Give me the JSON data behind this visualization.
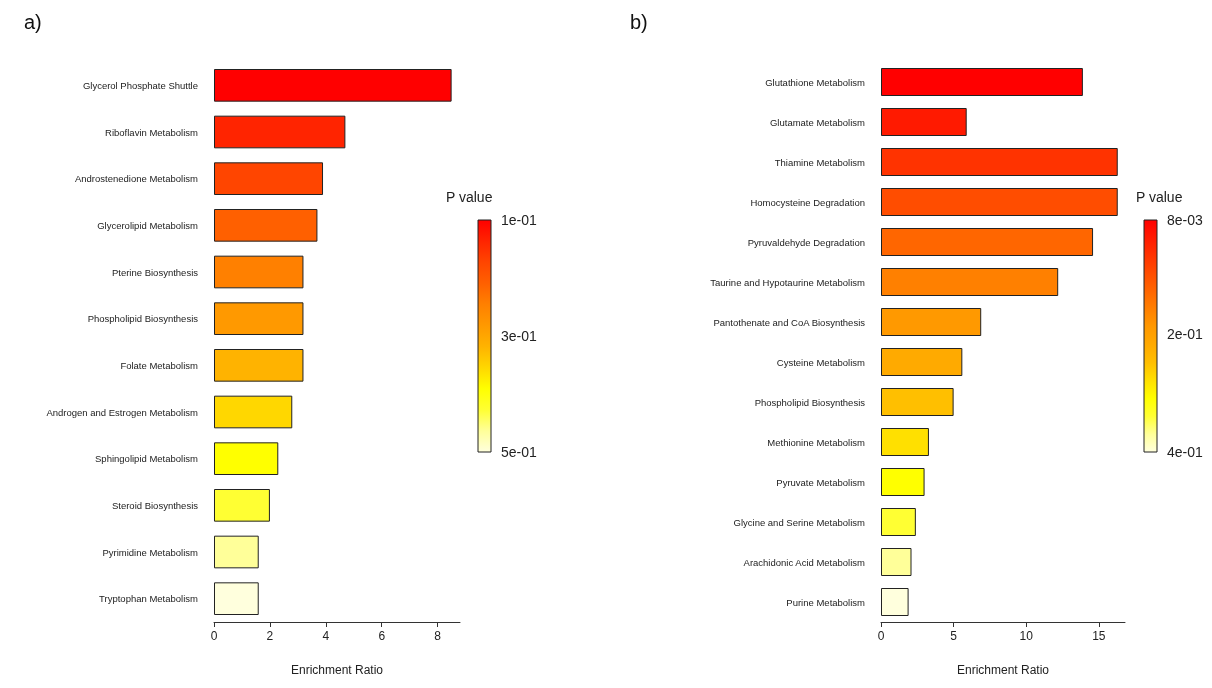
{
  "chart_data": [
    {
      "type": "bar",
      "orientation": "horizontal",
      "title": "a)",
      "xlabel": "Enrichment Ratio",
      "clabel": "P value",
      "categories": [
        "Glycerol Phosphate Shuttle",
        "Riboflavin Metabolism",
        "Androstenedione Metabolism",
        "Glycerolipid Metabolism",
        "Pterine Biosynthesis",
        "Phospholipid Biosynthesis",
        "Folate Metabolism",
        "Androgen and Estrogen Metabolism",
        "Sphingolipid Metabolism",
        "Steroid Biosynthesis",
        "Pyrimidine Metabolism",
        "Tryptophan Metabolism"
      ],
      "values": [
        8.5,
        4.7,
        3.9,
        3.7,
        3.2,
        3.2,
        3.2,
        2.8,
        2.3,
        2.0,
        1.6,
        1.6
      ],
      "colors": [
        "#ff0000",
        "#ff2400",
        "#ff4500",
        "#ff6000",
        "#ff8000",
        "#ff9900",
        "#ffb300",
        "#ffd700",
        "#ffff00",
        "#ffff33",
        "#ffff99",
        "#ffffdd"
      ],
      "xlim": [
        0,
        8.8
      ],
      "xticks": [
        0,
        2,
        4,
        6,
        8
      ],
      "clim": [
        0.1,
        0.5
      ],
      "cticks": [
        {
          "value": 0.1,
          "label": "1e-01"
        },
        {
          "value": 0.3,
          "label": "3e-01"
        },
        {
          "value": 0.5,
          "label": "5e-01"
        }
      ]
    },
    {
      "type": "bar",
      "orientation": "horizontal",
      "title": "b)",
      "xlabel": "Enrichment Ratio",
      "clabel": "P value",
      "categories": [
        "Glutathione Metabolism",
        "Glutamate Metabolism",
        "Thiamine Metabolism",
        "Homocysteine Degradation",
        "Pyruvaldehyde Degradation",
        "Taurine and Hypotaurine Metabolism",
        "Pantothenate and CoA Biosynthesis",
        "Cysteine Metabolism",
        "Phospholipid Biosynthesis",
        "Methionine Metabolism",
        "Pyruvate Metabolism",
        "Glycine and Serine Metabolism",
        "Arachidonic Acid Metabolism",
        "Purine Metabolism"
      ],
      "values": [
        13.9,
        5.9,
        16.3,
        16.3,
        14.6,
        12.2,
        6.9,
        5.6,
        5.0,
        3.3,
        3.0,
        2.4,
        2.1,
        1.9
      ],
      "colors": [
        "#ff0000",
        "#ff1a00",
        "#ff3300",
        "#ff4d00",
        "#ff6600",
        "#ff8000",
        "#ff9900",
        "#ffaa00",
        "#ffbf00",
        "#ffe000",
        "#ffff00",
        "#ffff33",
        "#ffff99",
        "#ffffdd"
      ],
      "xlim": [
        0,
        16.8
      ],
      "xticks": [
        0,
        5,
        10,
        15
      ],
      "clim": [
        0.008,
        0.4
      ],
      "cticks": [
        {
          "value": 0.008,
          "label": "8e-03"
        },
        {
          "value": 0.2,
          "label": "2e-01"
        },
        {
          "value": 0.4,
          "label": "4e-01"
        }
      ]
    }
  ]
}
